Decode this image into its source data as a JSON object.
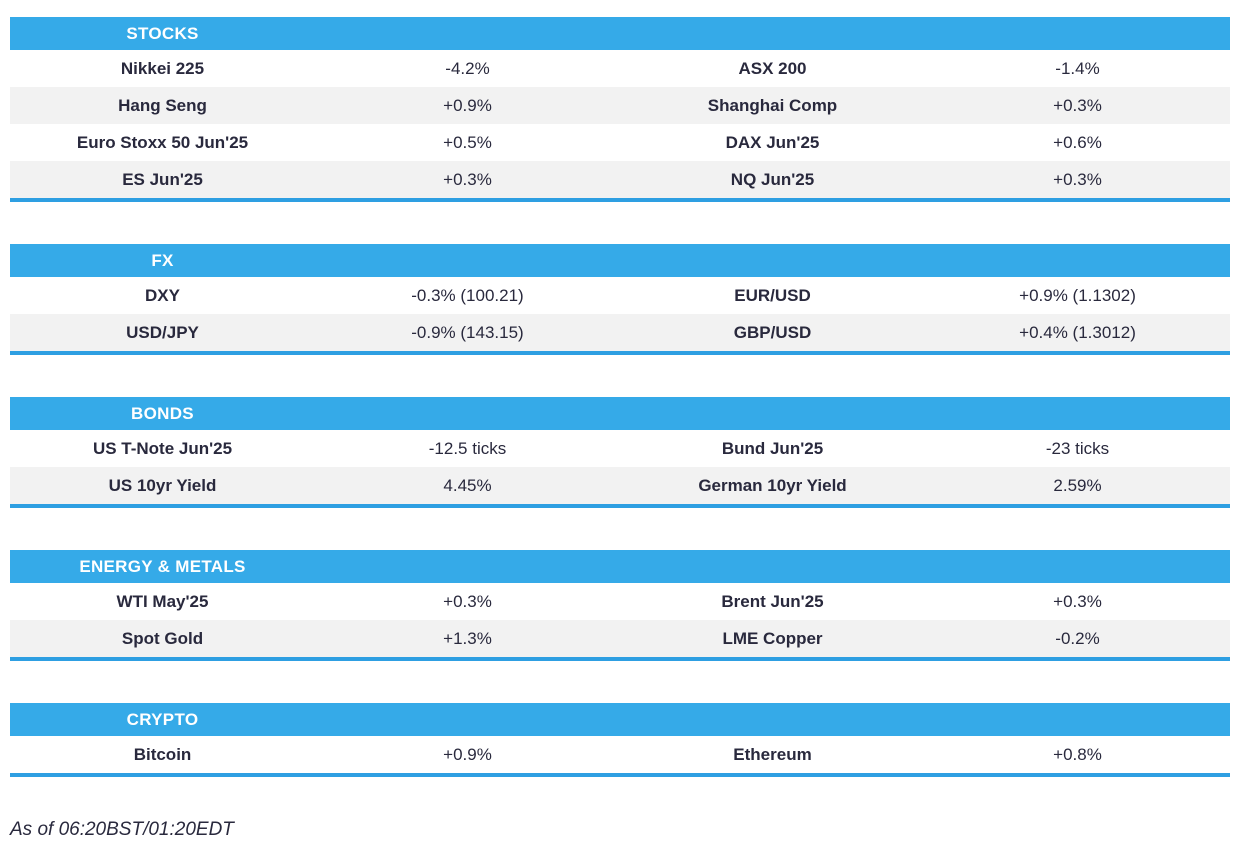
{
  "colors": {
    "header_bg": "#35aae8",
    "section_underline": "#2e9fe2",
    "stripe_row_bg": "#f2f2f2",
    "text": "#29293d",
    "header_text": "#ffffff"
  },
  "sections": [
    {
      "title": "STOCKS",
      "rows": [
        {
          "cells": [
            "Nikkei 225",
            "-4.2%",
            "ASX 200",
            "-1.4%"
          ]
        },
        {
          "cells": [
            "Hang Seng",
            "+0.9%",
            "Shanghai Comp",
            "+0.3%"
          ]
        },
        {
          "cells": [
            "Euro Stoxx 50 Jun'25",
            "+0.5%",
            "DAX Jun'25",
            "+0.6%"
          ]
        },
        {
          "cells": [
            "ES Jun'25",
            "+0.3%",
            "NQ Jun'25",
            "+0.3%"
          ]
        }
      ]
    },
    {
      "title": "FX",
      "rows": [
        {
          "cells": [
            "DXY",
            "-0.3% (100.21)",
            "EUR/USD",
            "+0.9% (1.1302)"
          ]
        },
        {
          "cells": [
            "USD/JPY",
            "-0.9% (143.15)",
            "GBP/USD",
            "+0.4% (1.3012)"
          ]
        }
      ]
    },
    {
      "title": "BONDS",
      "rows": [
        {
          "cells": [
            "US T-Note Jun'25",
            "-12.5 ticks",
            "Bund Jun'25",
            "-23 ticks"
          ]
        },
        {
          "cells": [
            "US 10yr Yield",
            "4.45%",
            "German 10yr Yield",
            "2.59%"
          ]
        }
      ]
    },
    {
      "title": "ENERGY & METALS",
      "rows": [
        {
          "cells": [
            "WTI May'25",
            "+0.3%",
            "Brent Jun'25",
            "+0.3%"
          ]
        },
        {
          "cells": [
            "Spot Gold",
            "+1.3%",
            "LME Copper",
            "-0.2%"
          ]
        }
      ]
    },
    {
      "title": "CRYPTO",
      "rows": [
        {
          "cells": [
            "Bitcoin",
            "+0.9%",
            "Ethereum",
            "+0.8%"
          ]
        }
      ]
    }
  ],
  "footer": {
    "as_of": "As of 06:20BST/01:20EDT"
  }
}
